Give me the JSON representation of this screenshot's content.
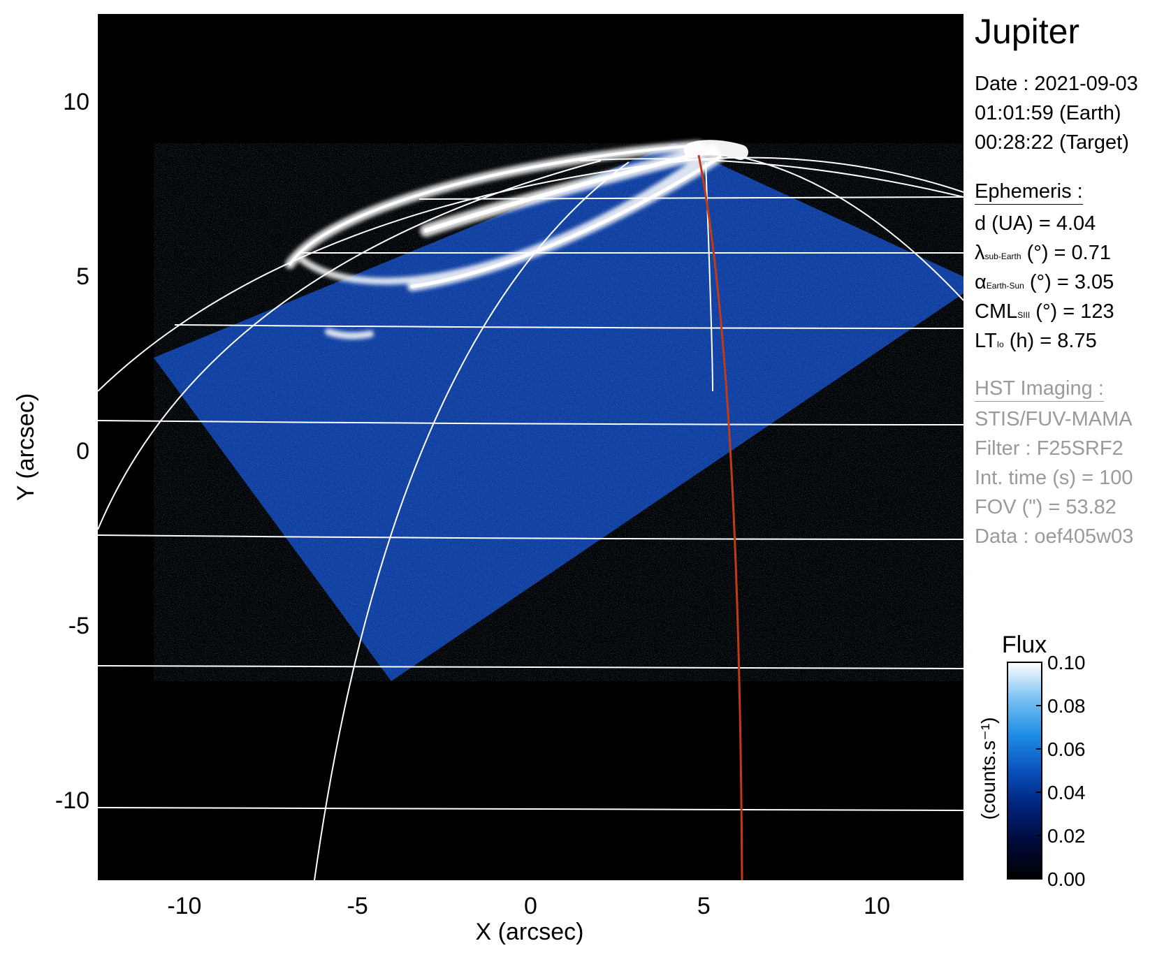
{
  "chart_data": {
    "type": "heatmap",
    "xlabel": "X (arcsec)",
    "ylabel": "Y (arcsec)",
    "xlim": [
      -12.5,
      12.5
    ],
    "ylim": [
      -12.3,
      12.5
    ],
    "xticks": [
      "-10",
      "-5",
      "0",
      "5",
      "10"
    ],
    "yticks": [
      "10",
      "5",
      "0",
      "-5",
      "-10"
    ],
    "xtick_values": [
      -10,
      -5,
      0,
      5,
      10
    ],
    "ytick_values": [
      10,
      5,
      0,
      -5,
      -10
    ],
    "grid": true,
    "colorbar": {
      "title": "Flux",
      "label": "(counts.s⁻¹)",
      "range": [
        0.0,
        0.1
      ],
      "ticks": [
        "0.10",
        "0.08",
        "0.06",
        "0.04",
        "0.02",
        "0.00"
      ],
      "tick_values": [
        0.1,
        0.08,
        0.06,
        0.04,
        0.02,
        0.0
      ],
      "colors": [
        "#000000",
        "#000a3a",
        "#00237c",
        "#0a52bd",
        "#1f8fe6",
        "#7fc4f4",
        "#ffffff"
      ]
    },
    "colors": {
      "background": "#000000",
      "grid": "#ffffff",
      "reference_line": "#c53a10",
      "data_region": "#0d3c9e",
      "aurora": "#ffffff"
    }
  },
  "panel": {
    "target": "Jupiter",
    "date": "Date : 2021-09-03",
    "earth_time": "01:01:59 (Earth)",
    "target_time": "00:28:22 (Target)",
    "ephemeris_header": "Ephemeris :",
    "d_text": "d (UA)    = 4.04",
    "lambda_sym": "λ",
    "lambda_sub": "sub-Earth",
    "lambda_rest": " (°) = 0.71",
    "alpha_sym": "α",
    "alpha_sub": "Earth-Sun",
    "alpha_rest": " (°) = 3.05",
    "cml_sym": "CML",
    "cml_sub": "SIII",
    "cml_rest": " (°) = 123",
    "lt_sym": "LT",
    "lt_sub": "Io",
    "lt_rest": " (h) = 8.75",
    "hst_header": "HST Imaging :",
    "instrument": "STIS/FUV-MAMA",
    "filter": "Filter : F25SRF2",
    "int_time": "Int. time (s) = 100",
    "fov": "FOV (\") = 53.82",
    "data_id": "Data : oef405w03"
  }
}
